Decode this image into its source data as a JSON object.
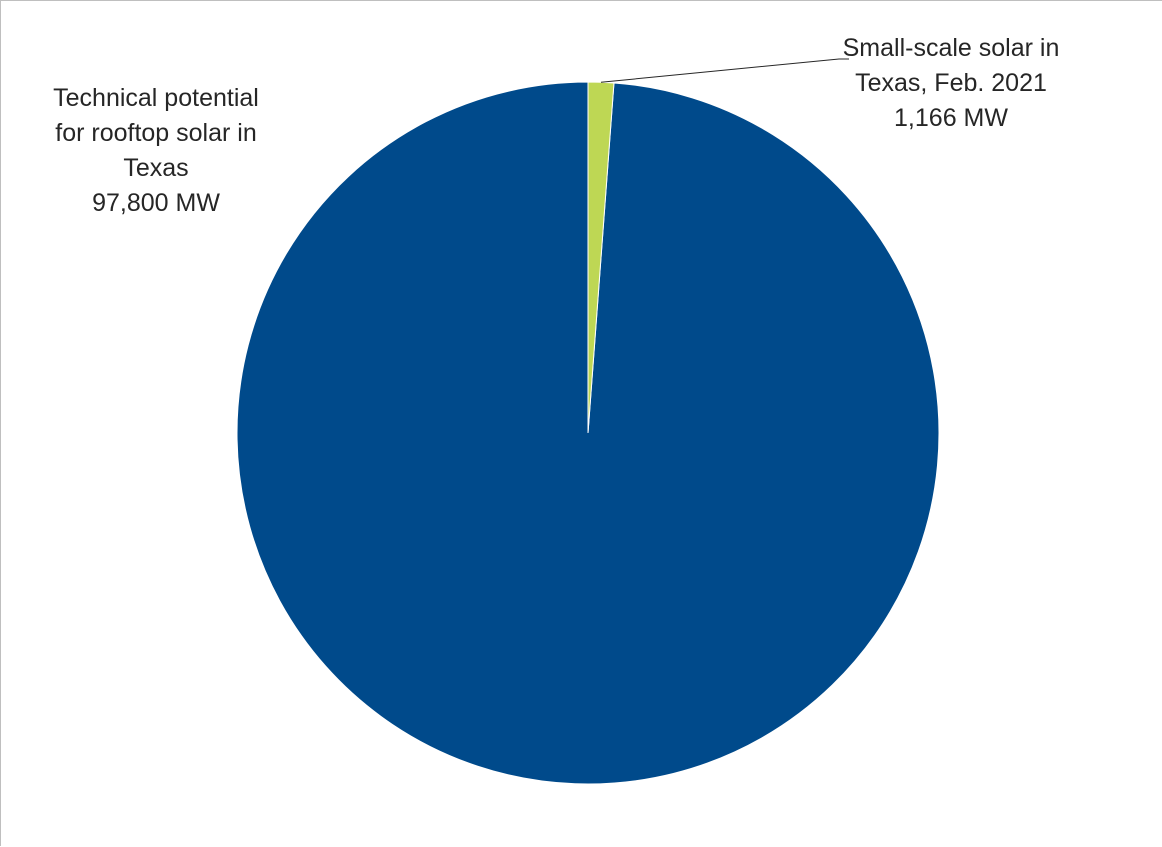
{
  "chart_data": {
    "type": "pie",
    "title": "",
    "slices": [
      {
        "label_lines": [
          "Technical potential",
          "for rooftop solar in",
          "Texas",
          "97,800 MW"
        ],
        "value": 97800,
        "color": "#004a8b"
      },
      {
        "label_lines": [
          "Small-scale solar in",
          "Texas, Feb. 2021",
          "1,166 MW"
        ],
        "value": 1166,
        "color": "#bed754"
      }
    ],
    "legend": "none"
  }
}
